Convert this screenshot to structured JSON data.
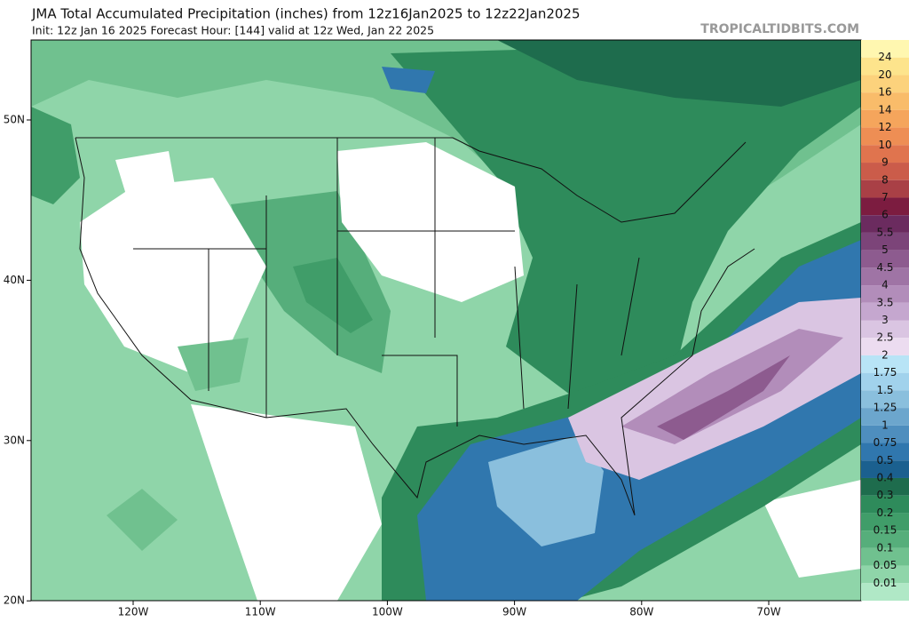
{
  "header": {
    "title": "JMA Total Accumulated Precipitation (inches) from 12z16Jan2025 to 12z22Jan2025",
    "subtitle": "Init: 12z Jan 16 2025   Forecast Hour: [144]   valid at 12z Wed, Jan 22 2025",
    "watermark": "TROPICALTIDBITS.COM"
  },
  "map": {
    "lat_labels": [
      "50N",
      "40N",
      "30N",
      "20N"
    ],
    "lon_labels": [
      "120W",
      "110W",
      "100W",
      "90W",
      "80W",
      "70W"
    ]
  },
  "colorbar": {
    "color_above": "#fff7b0",
    "items": [
      {
        "label": "24",
        "color": "#fde48c"
      },
      {
        "label": "20",
        "color": "#fcd27c"
      },
      {
        "label": "16",
        "color": "#f9bc6a"
      },
      {
        "label": "14",
        "color": "#f5a55c"
      },
      {
        "label": "12",
        "color": "#ee8e54"
      },
      {
        "label": "10",
        "color": "#e0744e"
      },
      {
        "label": "9",
        "color": "#cb5c4a"
      },
      {
        "label": "8",
        "color": "#a94046"
      },
      {
        "label": "7",
        "color": "#7c1c40"
      },
      {
        "label": "6",
        "color": "#6b2b5f"
      },
      {
        "label": "5.5",
        "color": "#7c4479"
      },
      {
        "label": "5",
        "color": "#8d5b8f"
      },
      {
        "label": "4.5",
        "color": "#9f74a5"
      },
      {
        "label": "4",
        "color": "#b28dba"
      },
      {
        "label": "3.5",
        "color": "#c5a7cf"
      },
      {
        "label": "3",
        "color": "#dac5e2"
      },
      {
        "label": "2.5",
        "color": "#ecdcf0"
      },
      {
        "label": "2",
        "color": "#b8e4f6"
      },
      {
        "label": "1.75",
        "color": "#a1d2ec"
      },
      {
        "label": "1.5",
        "color": "#8abfdd"
      },
      {
        "label": "1.25",
        "color": "#6ca6cd"
      },
      {
        "label": "1",
        "color": "#4e8ebe"
      },
      {
        "label": "0.75",
        "color": "#3077ae"
      },
      {
        "label": "0.5",
        "color": "#1b608f"
      },
      {
        "label": "0.4",
        "color": "#1e6c4d"
      },
      {
        "label": "0.3",
        "color": "#2e8b5b"
      },
      {
        "label": "0.2",
        "color": "#409d69"
      },
      {
        "label": "0.15",
        "color": "#56ae7b"
      },
      {
        "label": "0.1",
        "color": "#70c18f"
      },
      {
        "label": "0.05",
        "color": "#8fd5a9"
      },
      {
        "label": "0.01",
        "color": "#b0e8c6"
      }
    ]
  }
}
